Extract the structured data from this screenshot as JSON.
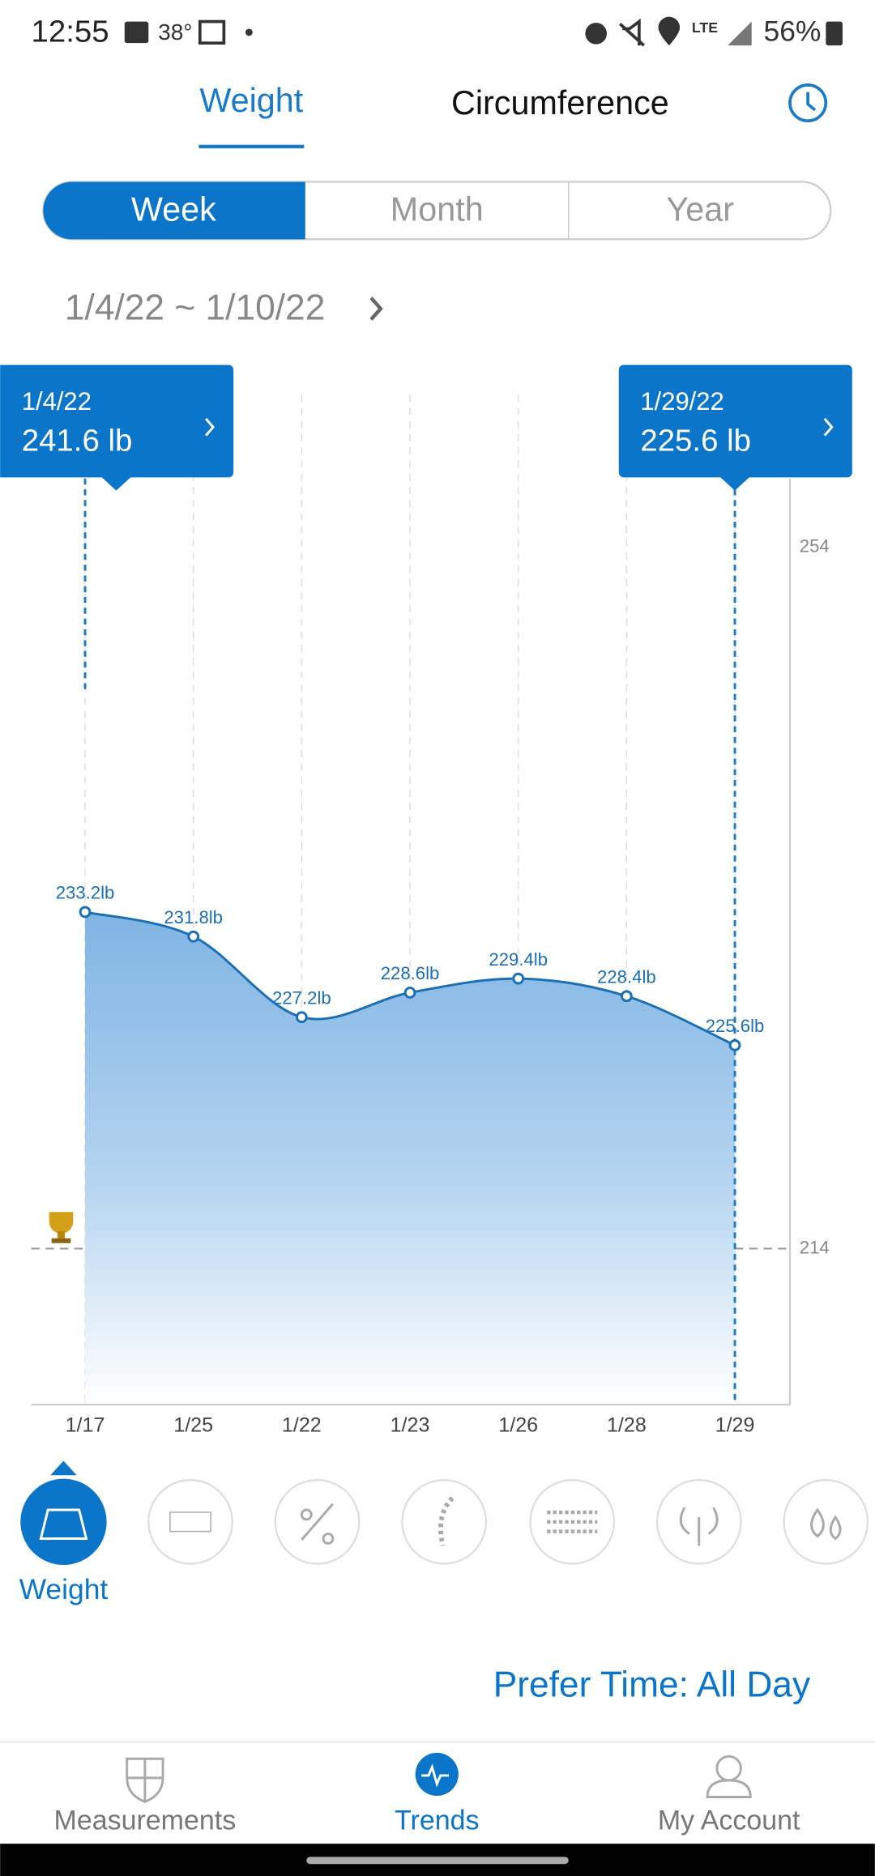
{
  "status_bar": {
    "time": "12:55",
    "temperature": "38°",
    "battery": "56%"
  },
  "tabs": [
    "Weight",
    "Circumference"
  ],
  "period_tabs": [
    "Week",
    "Month",
    "Year"
  ],
  "date_range": "1/4/22 ~ 1/10/22",
  "tooltips": [
    {
      "date": "1/4/22",
      "value": "241.6 lb"
    },
    {
      "date": "1/29/22",
      "value": "225.6 lb"
    }
  ],
  "chart_data": {
    "type": "line",
    "categories": [
      "1/17",
      "1/25",
      "1/22",
      "1/23",
      "1/26",
      "1/28",
      "1/29"
    ],
    "values": [
      233.2,
      231.8,
      227.2,
      228.6,
      229.4,
      228.4,
      225.6
    ],
    "value_labels": [
      "233.2lb",
      "231.8lb",
      "227.2lb",
      "228.6lb",
      "229.4lb",
      "228.4lb",
      "225.6lb"
    ],
    "color": "#1a6fb5",
    "ylim": [
      205.1,
      262.7
    ],
    "yticks": [
      254,
      214
    ],
    "target": 214,
    "grid": true
  },
  "metric_label": "Weight",
  "prefer_time": "Prefer Time: All Day",
  "nav": [
    "Measurements",
    "Trends",
    "My Account"
  ]
}
